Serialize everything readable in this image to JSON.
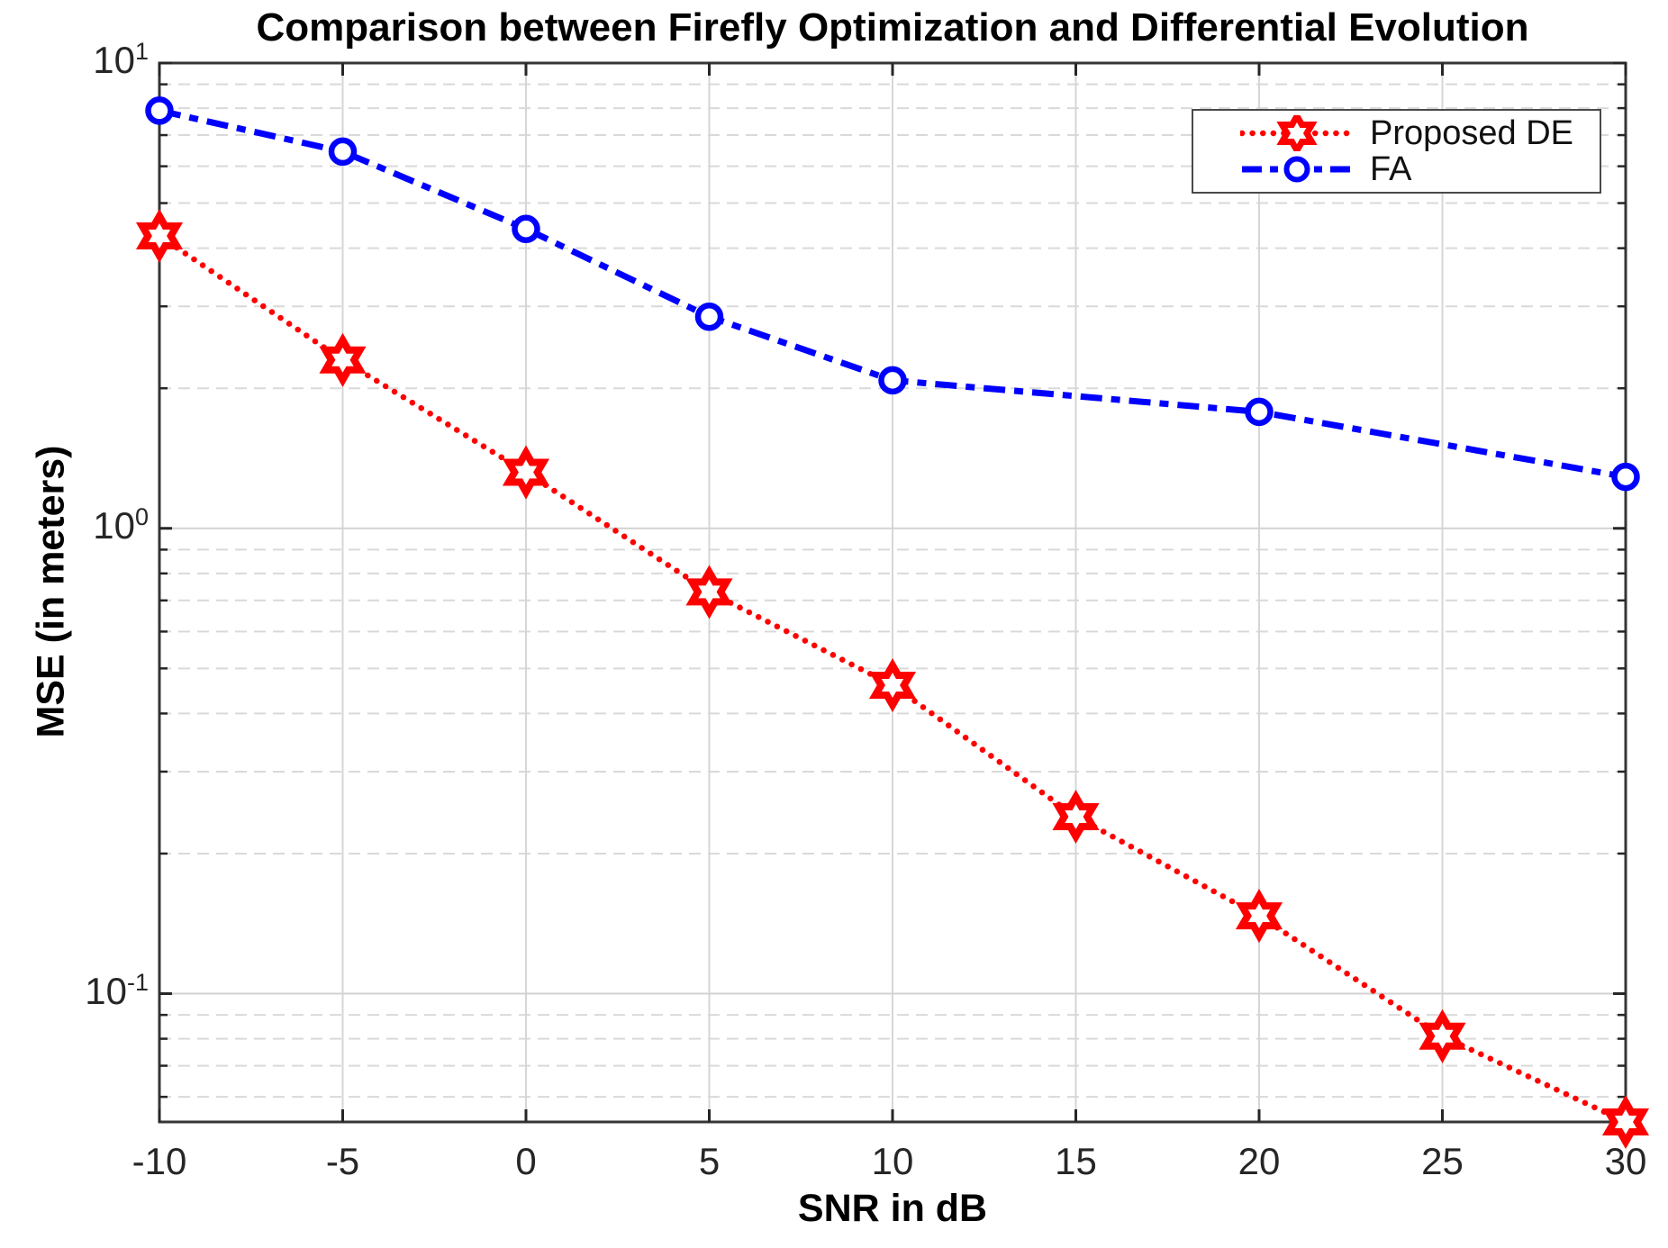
{
  "title": "Comparison between Firefly Optimization and Differential Evolution",
  "axes": {
    "x_label": "SNR in dB",
    "y_label": "MSE (in meters)",
    "x_ticks": [
      -10,
      -5,
      0,
      5,
      10,
      15,
      20,
      25,
      30
    ],
    "y_ticks": [
      {
        "value": 10,
        "base": "10",
        "exp": "1"
      },
      {
        "value": 1,
        "base": "10",
        "exp": "0"
      },
      {
        "value": 0.1,
        "base": "10",
        "exp": "-1"
      }
    ]
  },
  "legend": {
    "entries": [
      {
        "label": "Proposed DE",
        "color": "#ff0000",
        "marker": "hexagram",
        "line_style": "dotted"
      },
      {
        "label": "FA",
        "color": "#0000ff",
        "marker": "circle",
        "line_style": "dash-dot"
      }
    ]
  },
  "colors": {
    "axis": "#262626",
    "box": "#363636",
    "major_grid": "#d2d2d2",
    "minor_grid": "#d9d9d9",
    "x_grid": "#d6d6d6",
    "proposed_de": "#ff0000",
    "fa": "#0000ff"
  },
  "chart_data": {
    "type": "line",
    "title": "Comparison between Firefly Optimization and Differential Evolution",
    "xlabel": "SNR in dB",
    "ylabel": "MSE (in meters)",
    "xlim": [
      -10,
      30
    ],
    "ylim": [
      0.053,
      10
    ],
    "yscale": "log",
    "grid": true,
    "minor_grid": true,
    "legend_position": "top-right",
    "x_ticks": [
      -10,
      -5,
      0,
      5,
      10,
      15,
      20,
      25,
      30
    ],
    "y_tick_values": [
      10,
      1,
      0.1
    ],
    "y_tick_labels": [
      "10^1",
      "10^0",
      "10^-1"
    ],
    "series": [
      {
        "name": "Proposed DE",
        "color": "#ff0000",
        "line_style": "dotted",
        "marker": "hexagram",
        "x": [
          -10,
          -5,
          0,
          5,
          10,
          15,
          20,
          25,
          30
        ],
        "y": [
          4.25,
          2.3,
          1.32,
          0.73,
          0.46,
          0.24,
          0.147,
          0.081,
          0.053
        ]
      },
      {
        "name": "FA",
        "color": "#0000ff",
        "line_style": "dash-dot",
        "marker": "circle",
        "x": [
          -10,
          -5,
          0,
          5,
          10,
          20,
          30
        ],
        "y": [
          7.9,
          6.45,
          4.4,
          2.85,
          2.08,
          1.78,
          1.29
        ]
      }
    ]
  }
}
